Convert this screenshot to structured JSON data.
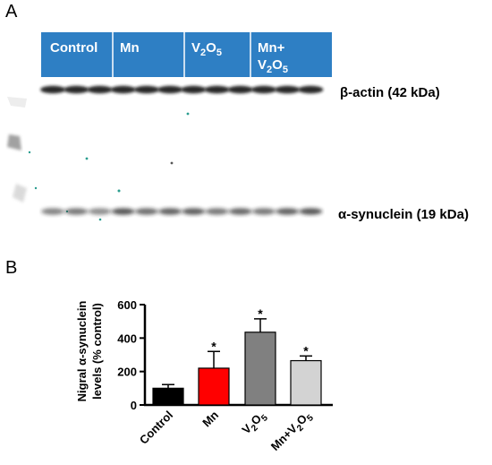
{
  "panel_a": {
    "letter": "A",
    "header_color": "#2e7fc4",
    "groups": [
      {
        "label": "Control",
        "sub": "",
        "sup": "",
        "label2": "",
        "sub2": ""
      },
      {
        "label": "Mn",
        "sub": "",
        "sup": "",
        "label2": "",
        "sub2": ""
      },
      {
        "label": "V",
        "sub": "2",
        "mid": "O",
        "sub2": "5",
        "label2": ""
      },
      {
        "label": "Mn+",
        "line2": "V",
        "sub": "2",
        "mid": "O",
        "sub2": "5"
      }
    ],
    "bands": [
      {
        "label": "β-actin (42 kDa)"
      },
      {
        "label": "α-synuclein (19 kDa)"
      }
    ]
  },
  "panel_b": {
    "letter": "B"
  },
  "chart_data": {
    "type": "bar",
    "ylabel_line1": "Nigral α-synuclein",
    "ylabel_line2": "levels (% control)",
    "ylim": [
      0,
      600
    ],
    "yticks": [
      0,
      200,
      400,
      600
    ],
    "categories": [
      {
        "base": "Control",
        "parts": []
      },
      {
        "base": "Mn",
        "parts": []
      },
      {
        "base": "V",
        "parts": [
          [
            "2",
            "sub"
          ],
          [
            "O",
            ""
          ],
          [
            "5",
            "sub"
          ]
        ]
      },
      {
        "base": "Mn+V",
        "parts": [
          [
            "2",
            "sub"
          ],
          [
            "O",
            ""
          ],
          [
            "5",
            "sub"
          ]
        ]
      }
    ],
    "values": [
      100,
      220,
      435,
      265
    ],
    "errors": [
      22,
      100,
      80,
      28
    ],
    "colors": [
      "#000000",
      "#ff0000",
      "#808080",
      "#d3d3d3"
    ],
    "significance": [
      "",
      "*",
      "*",
      "*"
    ]
  }
}
